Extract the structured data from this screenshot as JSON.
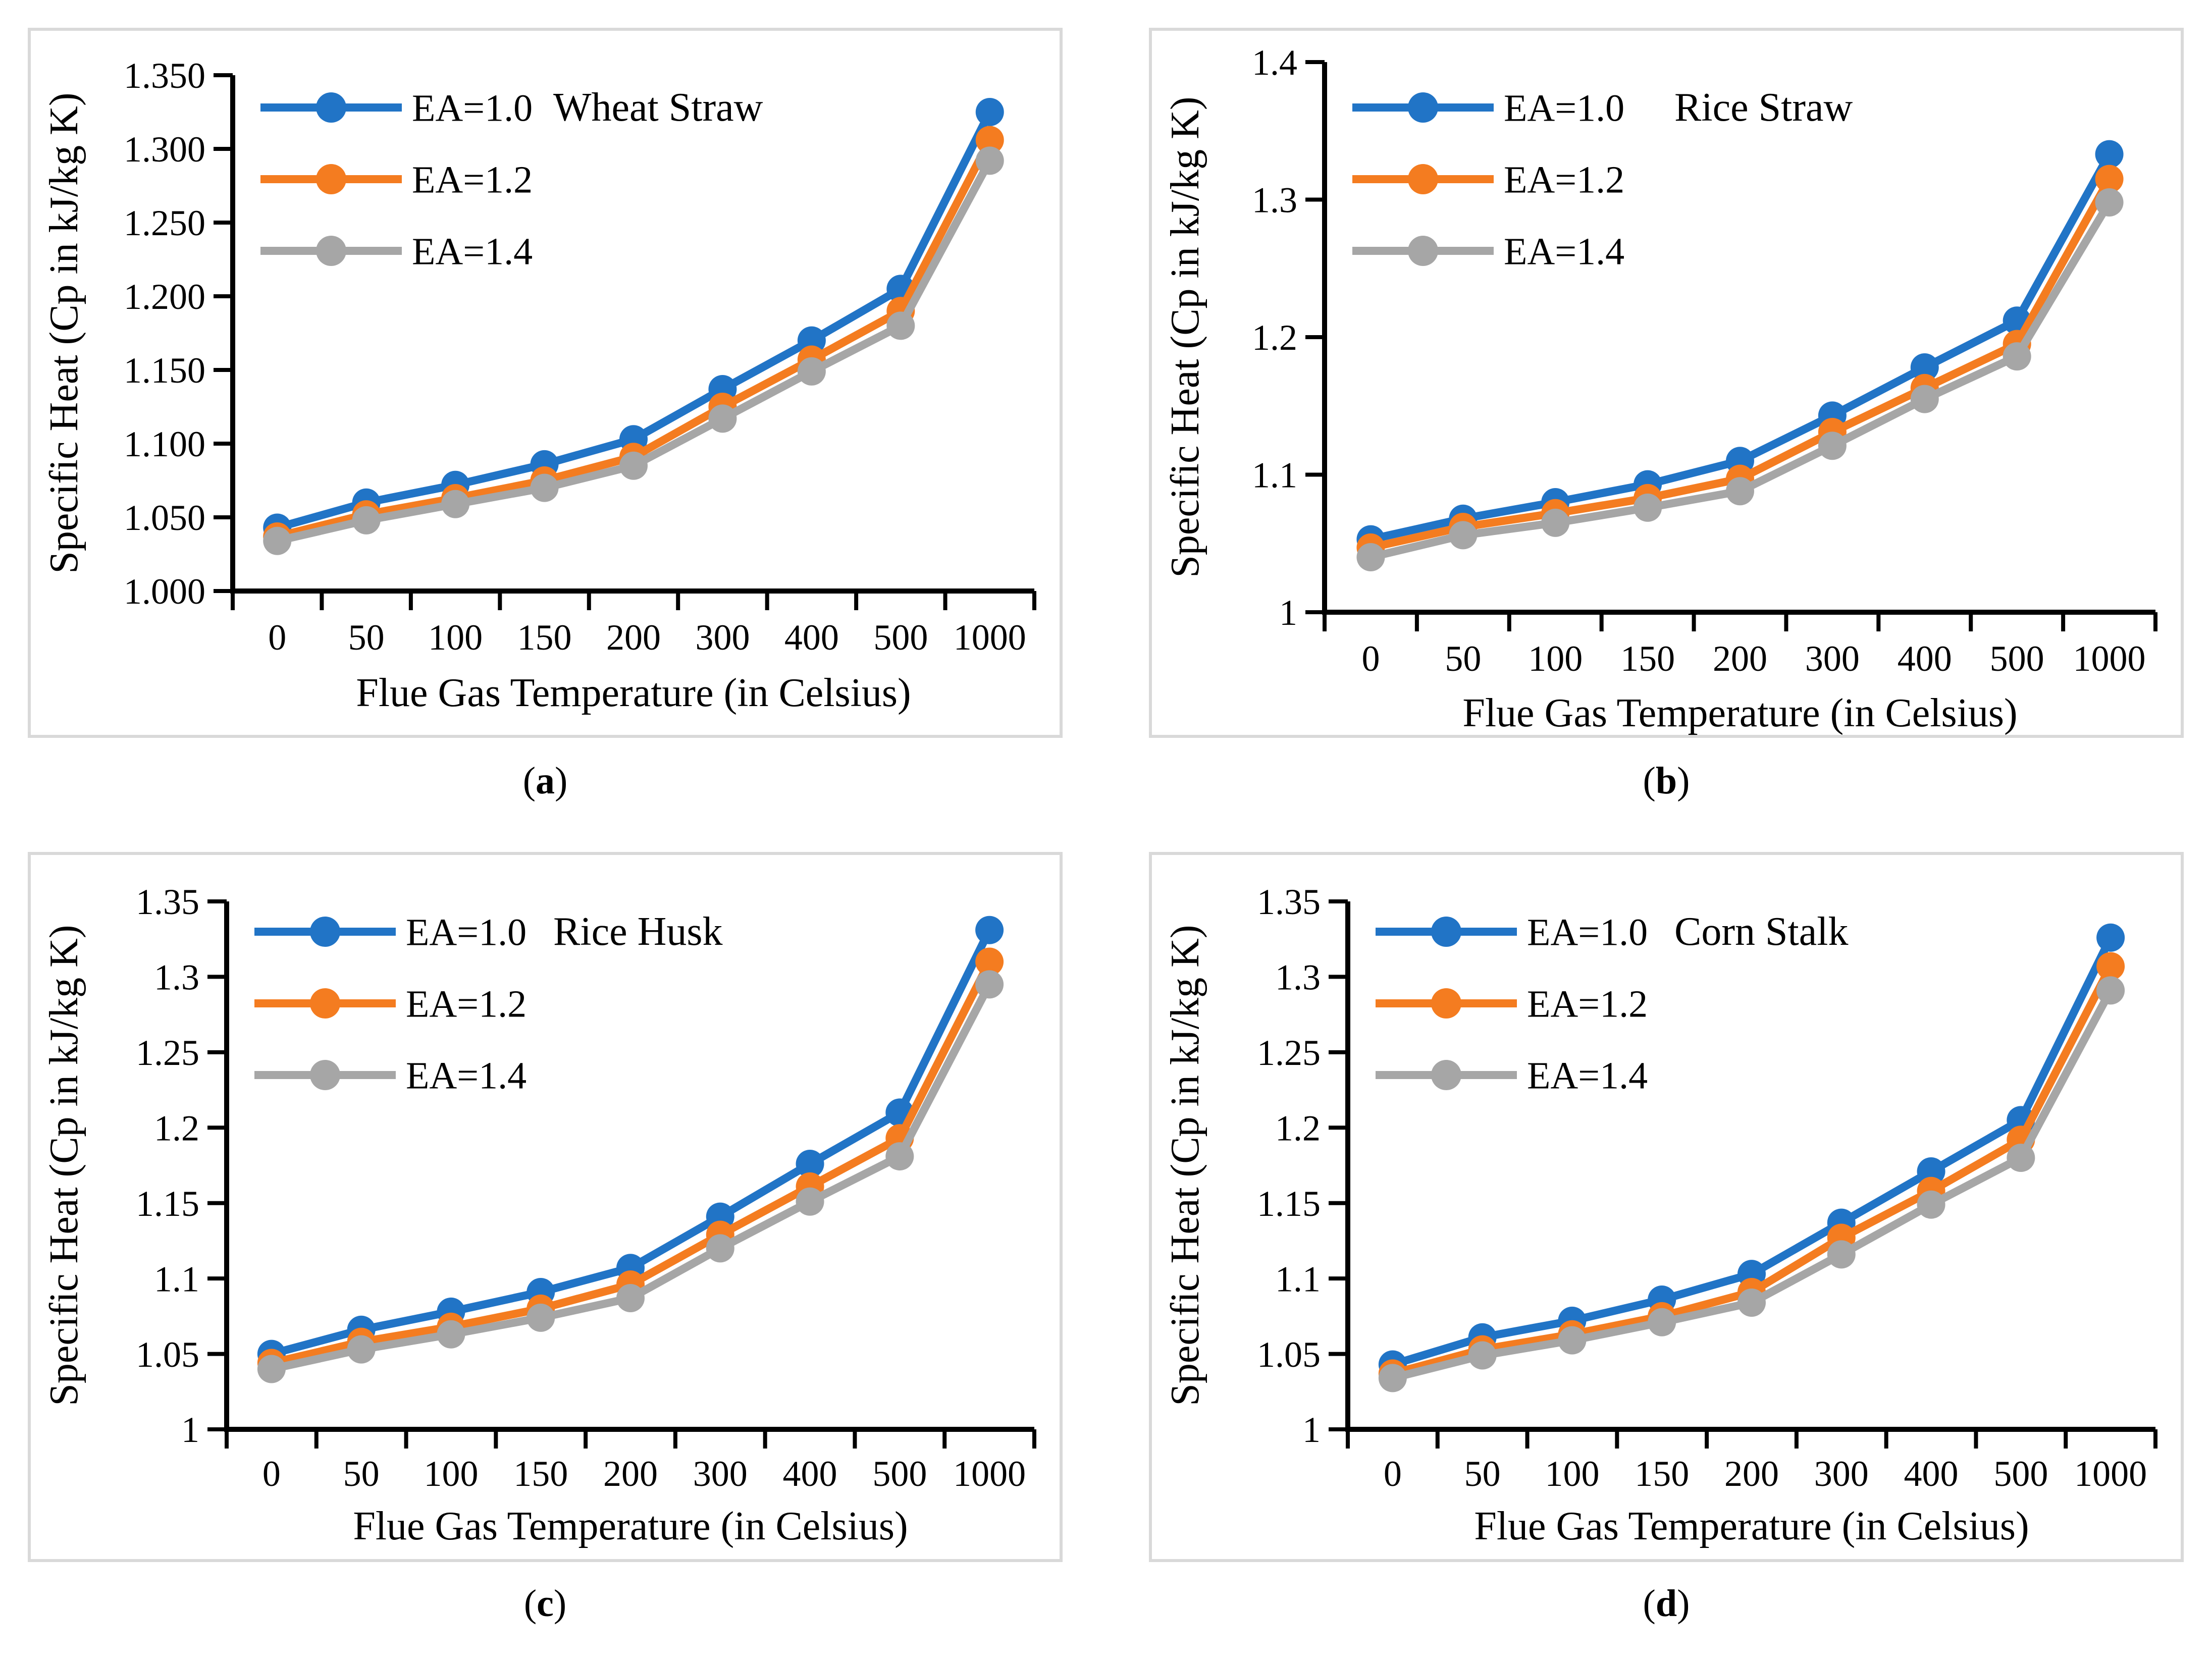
{
  "punct": {
    "open": "(",
    "close": ")"
  },
  "chart_data": [
    {
      "type": "line",
      "caption": "a",
      "title": "Wheat Straw",
      "xlabel": "Flue Gas Temperature (in Celsius)",
      "ylabel": "Specific Heat (Cp in kJ/kg K)",
      "categories": [
        "0",
        "50",
        "100",
        "150",
        "200",
        "300",
        "400",
        "500",
        "1000"
      ],
      "ylim": [
        1.0,
        1.35
      ],
      "ytick_labels": [
        "1.000",
        "1.050",
        "1.100",
        "1.150",
        "1.200",
        "1.250",
        "1.300",
        "1.350"
      ],
      "grid": false,
      "legend_position": "top-left-inside",
      "series": [
        {
          "name": "EA=1.0",
          "color": "#2174c6",
          "values": [
            1.043,
            1.06,
            1.072,
            1.086,
            1.103,
            1.137,
            1.17,
            1.205,
            1.325
          ]
        },
        {
          "name": "EA=1.2",
          "color": "#f47c20",
          "values": [
            1.037,
            1.052,
            1.063,
            1.075,
            1.091,
            1.125,
            1.157,
            1.19,
            1.306
          ]
        },
        {
          "name": "EA=1.4",
          "color": "#a6a6a6",
          "values": [
            1.034,
            1.048,
            1.059,
            1.07,
            1.085,
            1.117,
            1.149,
            1.18,
            1.292
          ]
        }
      ]
    },
    {
      "type": "line",
      "caption": "b",
      "title": "Rice Straw",
      "xlabel": "Flue Gas Temperature (in Celsius)",
      "ylabel": "Specific Heat (Cp in kJ/kg K)",
      "categories": [
        "0",
        "50",
        "100",
        "150",
        "200",
        "300",
        "400",
        "500",
        "1000"
      ],
      "ylim": [
        1.0,
        1.4
      ],
      "ytick_labels": [
        "1",
        "1.1",
        "1.2",
        "1.3",
        "1.4"
      ],
      "grid": false,
      "legend_position": "top-left-inside",
      "series": [
        {
          "name": "EA=1.0",
          "color": "#2174c6",
          "values": [
            1.053,
            1.068,
            1.08,
            1.093,
            1.11,
            1.143,
            1.178,
            1.212,
            1.333
          ]
        },
        {
          "name": "EA=1.2",
          "color": "#f47c20",
          "values": [
            1.047,
            1.062,
            1.072,
            1.083,
            1.097,
            1.131,
            1.163,
            1.195,
            1.315
          ]
        },
        {
          "name": "EA=1.4",
          "color": "#a6a6a6",
          "values": [
            1.04,
            1.056,
            1.065,
            1.076,
            1.088,
            1.121,
            1.155,
            1.186,
            1.298
          ]
        }
      ]
    },
    {
      "type": "line",
      "caption": "c",
      "title": "Rice Husk",
      "xlabel": "Flue Gas Temperature (in Celsius)",
      "ylabel": "Specific Heat (Cp in kJ/kg K)",
      "categories": [
        "0",
        "50",
        "100",
        "150",
        "200",
        "300",
        "400",
        "500",
        "1000"
      ],
      "ylim": [
        1.0,
        1.35
      ],
      "ytick_labels": [
        "1",
        "1.05",
        "1.1",
        "1.15",
        "1.2",
        "1.25",
        "1.3",
        "1.35"
      ],
      "grid": false,
      "legend_position": "top-left-inside",
      "series": [
        {
          "name": "EA=1.0",
          "color": "#2174c6",
          "values": [
            1.05,
            1.066,
            1.078,
            1.091,
            1.107,
            1.141,
            1.176,
            1.21,
            1.331
          ]
        },
        {
          "name": "EA=1.2",
          "color": "#f47c20",
          "values": [
            1.044,
            1.058,
            1.068,
            1.08,
            1.096,
            1.129,
            1.161,
            1.193,
            1.31
          ]
        },
        {
          "name": "EA=1.4",
          "color": "#a6a6a6",
          "values": [
            1.04,
            1.053,
            1.063,
            1.074,
            1.087,
            1.12,
            1.151,
            1.181,
            1.295
          ]
        }
      ]
    },
    {
      "type": "line",
      "caption": "d",
      "title": "Corn Stalk",
      "xlabel": "Flue Gas Temperature (in Celsius)",
      "ylabel": "Specific Heat (Cp in kJ/kg K)",
      "categories": [
        "0",
        "50",
        "100",
        "150",
        "200",
        "300",
        "400",
        "500",
        "1000"
      ],
      "ylim": [
        1.0,
        1.35
      ],
      "ytick_labels": [
        "1",
        "1.05",
        "1.1",
        "1.15",
        "1.2",
        "1.25",
        "1.3",
        "1.35"
      ],
      "grid": false,
      "legend_position": "top-left-inside",
      "series": [
        {
          "name": "EA=1.0",
          "color": "#2174c6",
          "values": [
            1.043,
            1.061,
            1.072,
            1.086,
            1.103,
            1.137,
            1.171,
            1.205,
            1.326
          ]
        },
        {
          "name": "EA=1.2",
          "color": "#f47c20",
          "values": [
            1.037,
            1.053,
            1.063,
            1.075,
            1.091,
            1.127,
            1.158,
            1.192,
            1.307
          ]
        },
        {
          "name": "EA=1.4",
          "color": "#a6a6a6",
          "values": [
            1.034,
            1.049,
            1.059,
            1.071,
            1.084,
            1.116,
            1.149,
            1.18,
            1.291
          ]
        }
      ]
    }
  ]
}
